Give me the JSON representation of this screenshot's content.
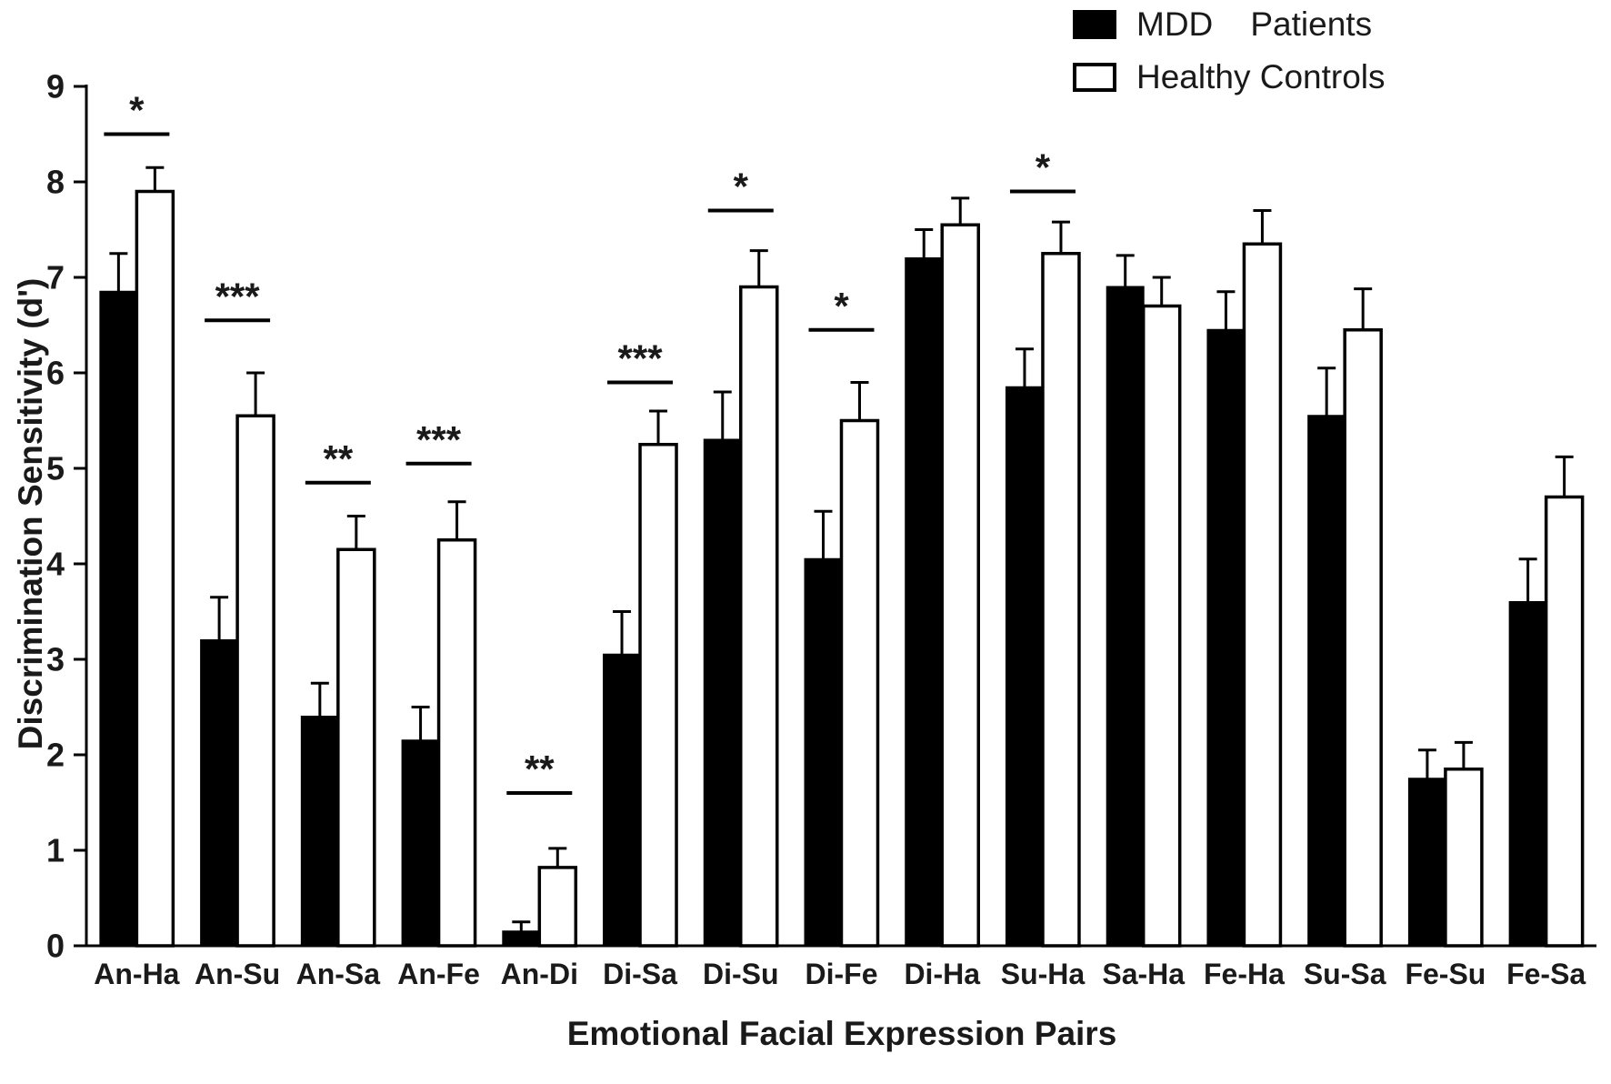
{
  "chart_data": {
    "type": "bar",
    "title": "",
    "xlabel": "Emotional Facial Expression Pairs",
    "ylabel": "Discrimination Sensitivity (d')",
    "ylim": [
      0,
      9
    ],
    "ytick_step": 1,
    "grid": false,
    "legend_position": "top-right",
    "categories": [
      "An-Ha",
      "An-Su",
      "An-Sa",
      "An-Fe",
      "An-Di",
      "Di-Sa",
      "Di-Su",
      "Di-Fe",
      "Di-Ha",
      "Su-Ha",
      "Sa-Ha",
      "Fe-Ha",
      "Su-Sa",
      "Fe-Su",
      "Fe-Sa"
    ],
    "series": [
      {
        "name": "MDD    Patients",
        "color": "#000000",
        "values": [
          6.85,
          3.2,
          2.4,
          2.15,
          0.15,
          3.05,
          5.3,
          4.05,
          7.2,
          5.85,
          6.9,
          6.45,
          5.55,
          1.75,
          3.6
        ],
        "errors": [
          0.4,
          0.45,
          0.35,
          0.35,
          0.1,
          0.45,
          0.5,
          0.5,
          0.3,
          0.4,
          0.33,
          0.4,
          0.5,
          0.3,
          0.45
        ]
      },
      {
        "name": "Healthy Controls",
        "color": "#ffffff",
        "values": [
          7.9,
          5.55,
          4.15,
          4.25,
          0.82,
          5.25,
          6.9,
          5.5,
          7.55,
          7.25,
          6.7,
          7.35,
          6.45,
          1.85,
          4.7
        ],
        "errors": [
          0.25,
          0.45,
          0.35,
          0.4,
          0.2,
          0.35,
          0.38,
          0.4,
          0.28,
          0.33,
          0.3,
          0.35,
          0.43,
          0.28,
          0.42
        ]
      }
    ],
    "significance": [
      {
        "category": "An-Ha",
        "label": "*",
        "y": 8.5
      },
      {
        "category": "An-Su",
        "label": "***",
        "y": 6.55
      },
      {
        "category": "An-Sa",
        "label": "**",
        "y": 4.85
      },
      {
        "category": "An-Fe",
        "label": "***",
        "y": 5.05
      },
      {
        "category": "An-Di",
        "label": "**",
        "y": 1.6
      },
      {
        "category": "Di-Sa",
        "label": "***",
        "y": 5.9
      },
      {
        "category": "Di-Su",
        "label": "*",
        "y": 7.7
      },
      {
        "category": "Di-Fe",
        "label": "*",
        "y": 6.45
      },
      {
        "category": "Su-Ha",
        "label": "*",
        "y": 7.9
      }
    ]
  }
}
